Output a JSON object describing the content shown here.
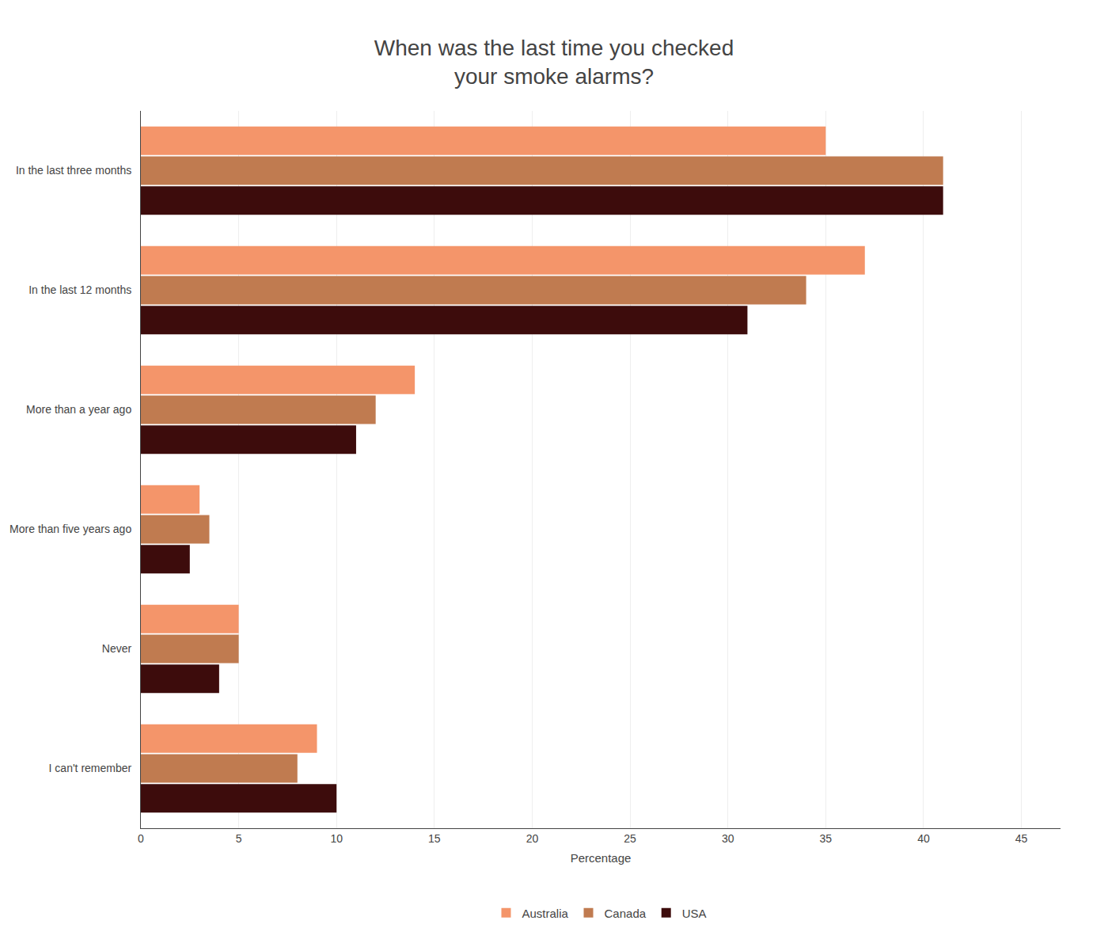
{
  "chart_data": {
    "type": "bar",
    "orientation": "horizontal",
    "title": "When was the last time you checked\nyour smoke alarms?",
    "categories": [
      "In the last three months",
      "In the last 12 months",
      "More than a year ago",
      "More than five years ago",
      "Never",
      "I can't remember"
    ],
    "series": [
      {
        "name": "Australia",
        "color": "#F4956A",
        "values": [
          35,
          37,
          14,
          3,
          5,
          9
        ]
      },
      {
        "name": "Canada",
        "color": "#C07B50",
        "values": [
          41,
          34,
          12,
          3.5,
          5,
          8
        ]
      },
      {
        "name": "USA",
        "color": "#3D0C0C",
        "values": [
          41,
          31,
          11,
          2.5,
          4,
          10
        ]
      }
    ],
    "xlabel": "Percentage",
    "xlim": [
      0,
      47
    ],
    "xticks": [
      0,
      5,
      10,
      15,
      20,
      25,
      30,
      35,
      40,
      45
    ],
    "grid": true,
    "legend": "bottom"
  }
}
